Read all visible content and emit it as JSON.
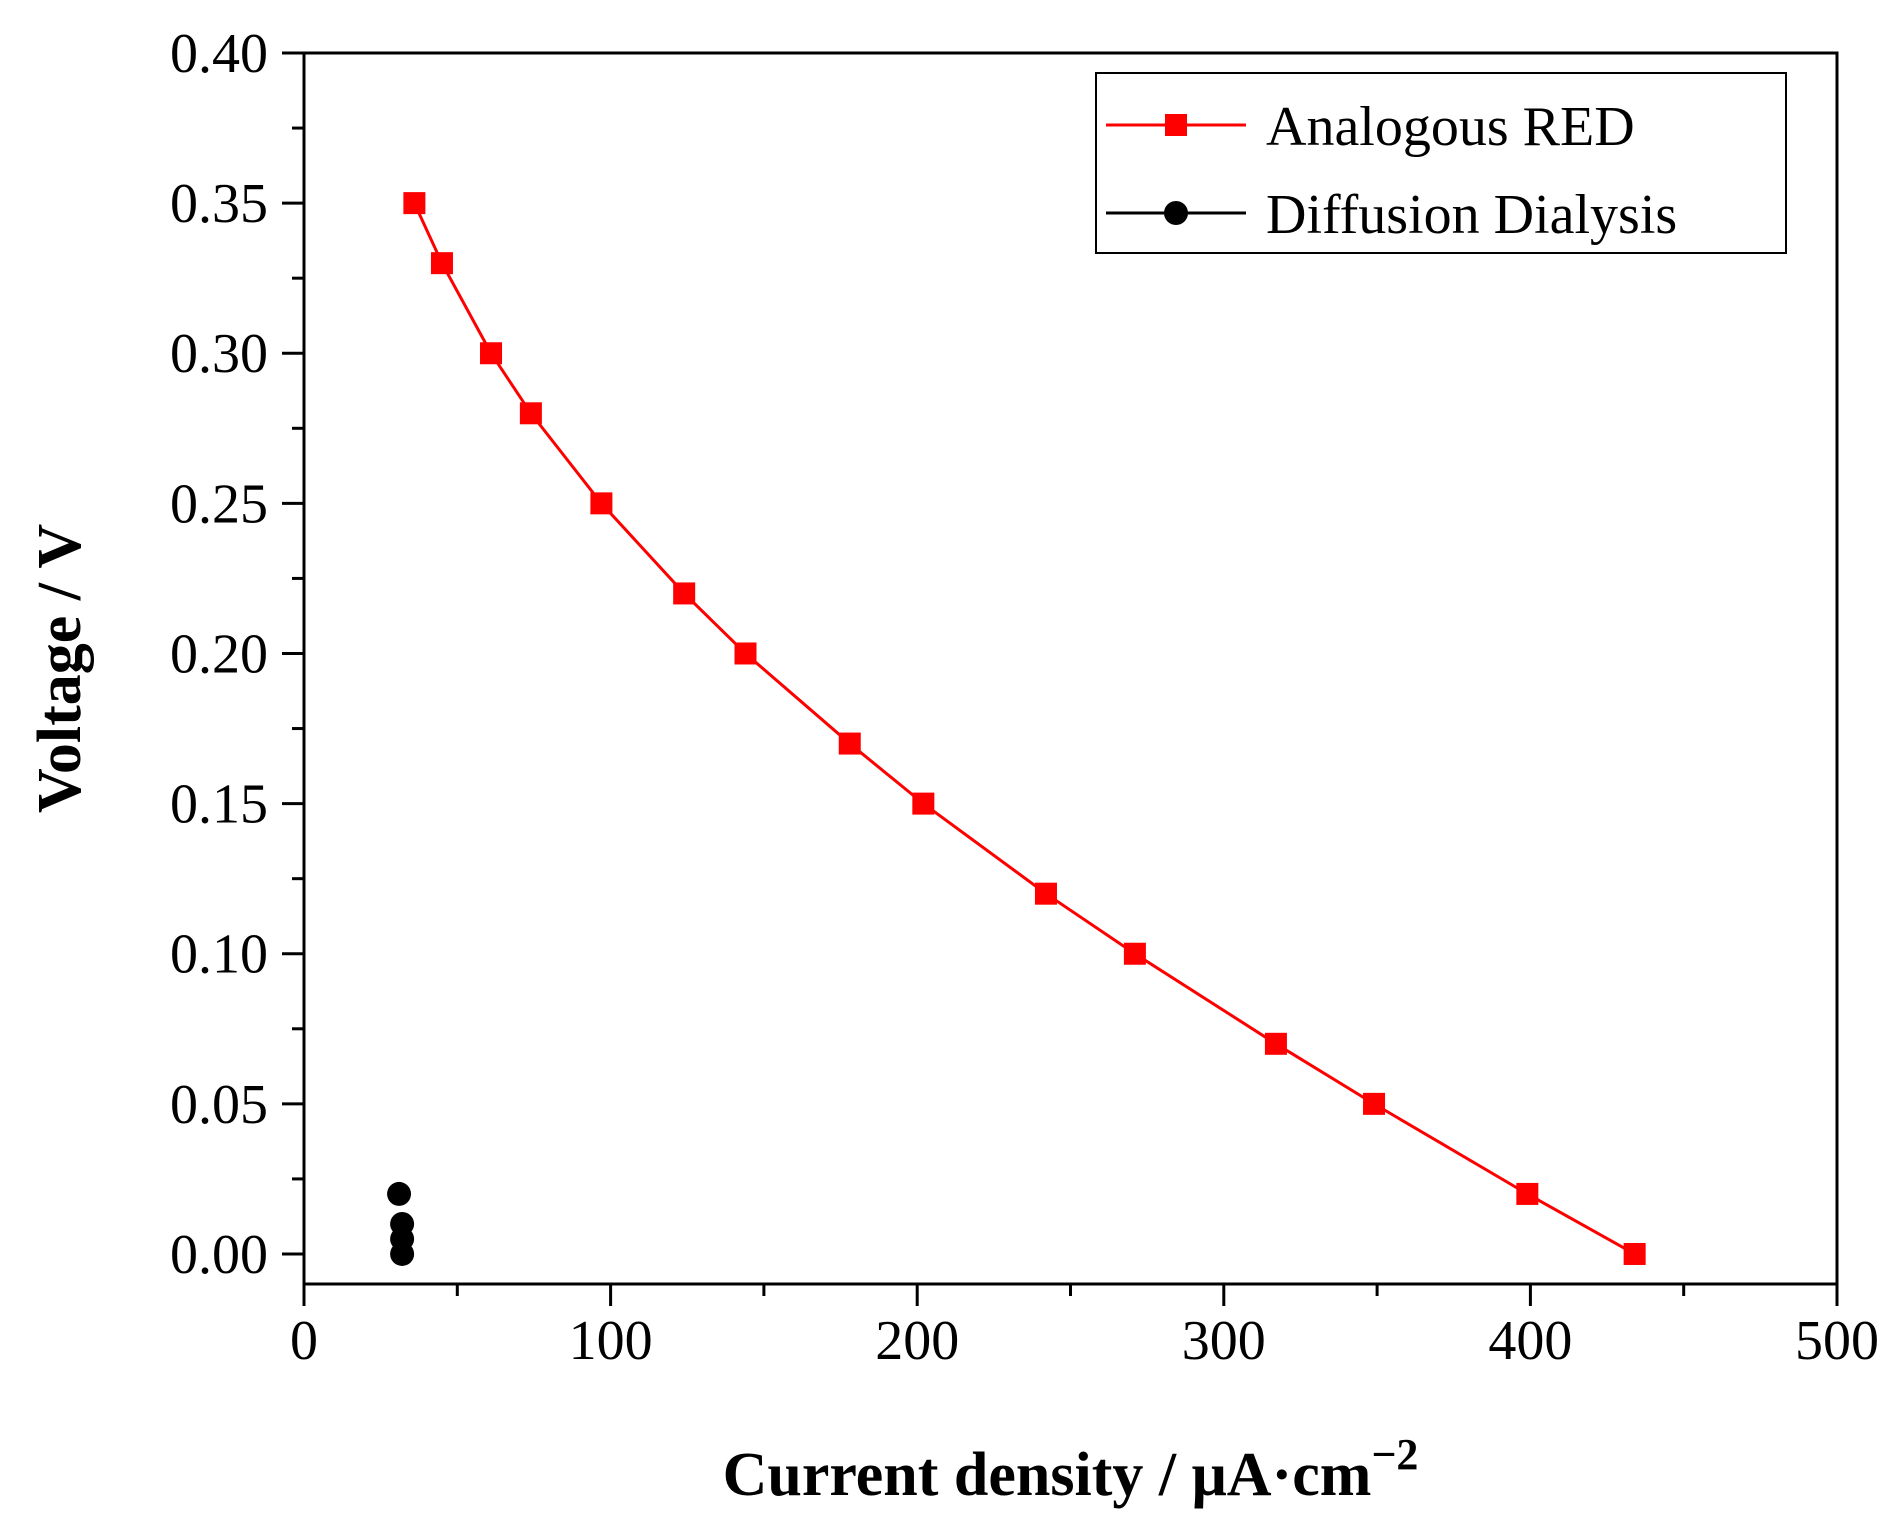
{
  "chart_data": {
    "type": "line",
    "title": "",
    "xlabel": "Current density / μA·cm",
    "xlabel_superscript": "−2",
    "ylabel": "Voltage / V",
    "xlim": [
      0,
      500
    ],
    "ylim": [
      -0.01,
      0.4
    ],
    "x_ticks": [
      0,
      100,
      200,
      300,
      400,
      500
    ],
    "x_tick_labels": [
      "0",
      "100",
      "200",
      "300",
      "400",
      "500"
    ],
    "y_ticks": [
      0.0,
      0.05,
      0.1,
      0.15,
      0.2,
      0.25,
      0.3,
      0.35,
      0.4
    ],
    "y_tick_labels": [
      "0.00",
      "0.05",
      "0.10",
      "0.15",
      "0.20",
      "0.25",
      "0.30",
      "0.35",
      "0.40"
    ],
    "grid": false,
    "legend_position": "top-right",
    "series": [
      {
        "name": "Analogous RED",
        "color": "#ff0000",
        "marker": "square",
        "connect": true,
        "x": [
          36,
          45,
          61,
          74,
          97,
          124,
          144,
          178,
          202,
          242,
          271,
          317,
          349,
          399,
          434
        ],
        "y": [
          0.35,
          0.33,
          0.3,
          0.28,
          0.25,
          0.22,
          0.2,
          0.17,
          0.15,
          0.12,
          0.1,
          0.07,
          0.05,
          0.02,
          0.0
        ]
      },
      {
        "name": "Diffusion Dialysis",
        "color": "#000000",
        "marker": "circle",
        "connect": false,
        "x": [
          31,
          32,
          32,
          32
        ],
        "y": [
          0.02,
          0.01,
          0.005,
          0.0
        ]
      }
    ]
  }
}
